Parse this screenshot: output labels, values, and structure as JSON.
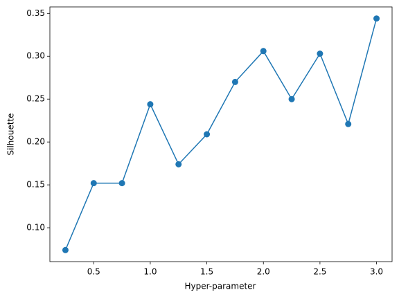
{
  "chart_data": {
    "type": "line",
    "x_label": "Hyper-parameter",
    "y_label": "Silhouette",
    "x": [
      0.25,
      0.5,
      0.75,
      1.0,
      1.25,
      1.5,
      1.75,
      2.0,
      2.25,
      2.5,
      2.75,
      3.0
    ],
    "series": [
      {
        "color": "#1f77b4",
        "values": [
          0.074,
          0.152,
          0.152,
          0.244,
          0.174,
          0.209,
          0.27,
          0.306,
          0.25,
          0.303,
          0.221,
          0.344
        ]
      }
    ],
    "xlim": [
      0.1125,
      3.1375
    ],
    "xticks": [
      {
        "value": 0.5,
        "label": "0.5"
      },
      {
        "value": 1.0,
        "label": "1.0"
      },
      {
        "value": 1.5,
        "label": "1.5"
      },
      {
        "value": 2.0,
        "label": "2.0"
      },
      {
        "value": 2.5,
        "label": "2.5"
      },
      {
        "value": 3.0,
        "label": "3.0"
      }
    ],
    "ylim": [
      0.0605,
      0.3575
    ],
    "yticks": [
      {
        "value": 0.1,
        "label": "0.10"
      },
      {
        "value": 0.15,
        "label": "0.15"
      },
      {
        "value": 0.2,
        "label": "0.20"
      },
      {
        "value": 0.25,
        "label": "0.25"
      },
      {
        "value": 0.3,
        "label": "0.30"
      },
      {
        "value": 0.35,
        "label": "0.35"
      }
    ],
    "markers": true
  }
}
